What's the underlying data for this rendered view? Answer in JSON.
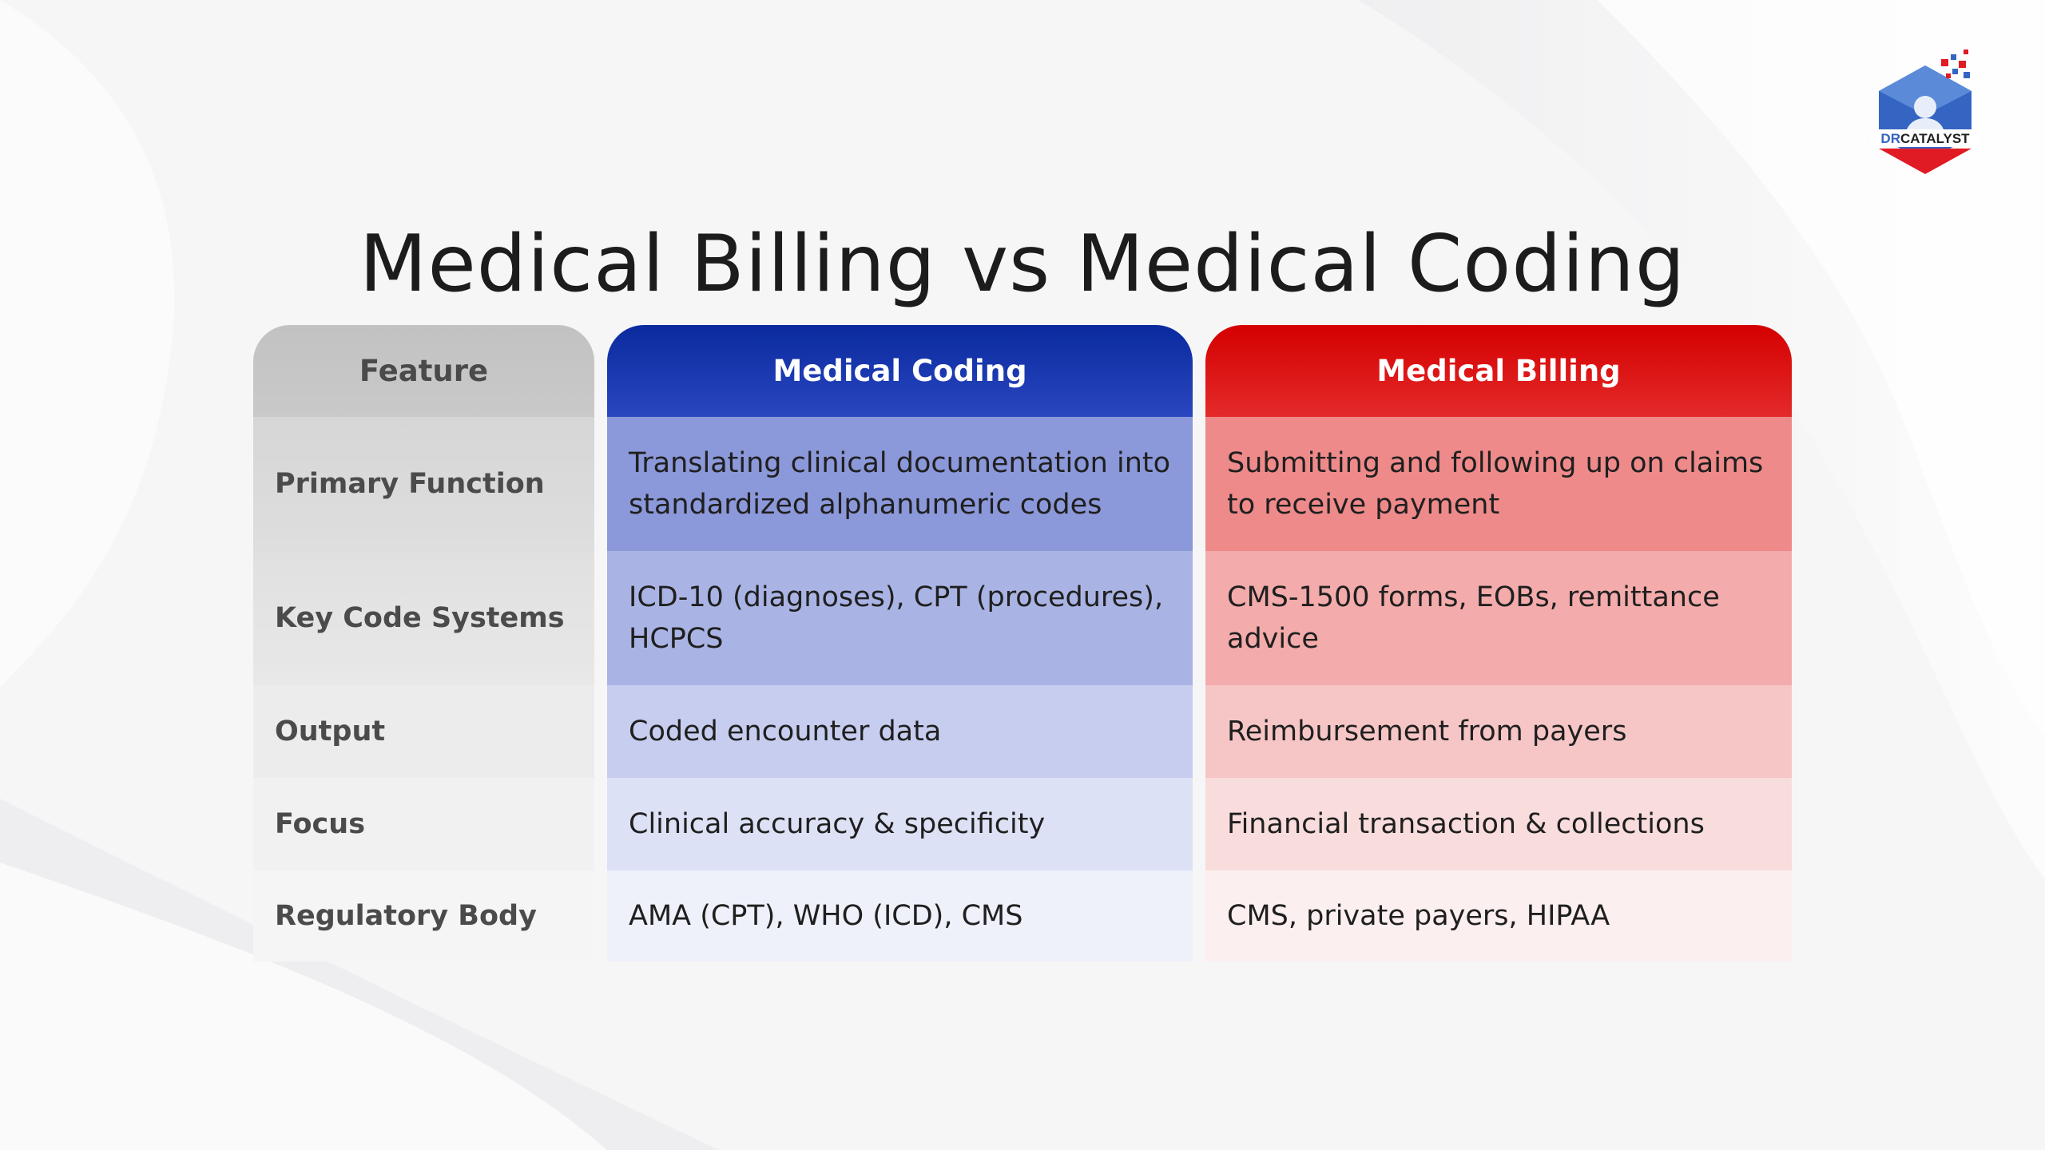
{
  "title": "Medical Billing vs Medical Coding",
  "logo": {
    "text_dr": "DR",
    "text_catalyst": "CATALYST",
    "colors": {
      "blue": "#2f5db8",
      "red": "#e01b24"
    }
  },
  "table": {
    "headers": [
      "Feature",
      "Medical Coding",
      "Medical Billing"
    ],
    "rows": [
      {
        "feature": "Primary Function",
        "coding": "Translating clinical documentation into standardized alphanumeric codes",
        "billing": "Submitting and following up on claims to receive payment"
      },
      {
        "feature": "Key Code Systems",
        "coding": "ICD-10 (diagnoses), CPT (procedures), HCPCS",
        "billing": "CMS-1500 forms, EOBs, remittance advice"
      },
      {
        "feature": "Output",
        "coding": "Coded encounter data",
        "billing": "Reimbursement from payers"
      },
      {
        "feature": "Focus",
        "coding": "Clinical accuracy & specificity",
        "billing": "Financial transaction & collections"
      },
      {
        "feature": "Regulatory Body",
        "coding": "AMA (CPT), WHO (ICD), CMS",
        "billing": "CMS, private payers, HIPAA"
      }
    ]
  },
  "colors": {
    "coding_header": "#0a2a9e",
    "billing_header": "#d40000",
    "feature_header": "#c2c2c2"
  }
}
